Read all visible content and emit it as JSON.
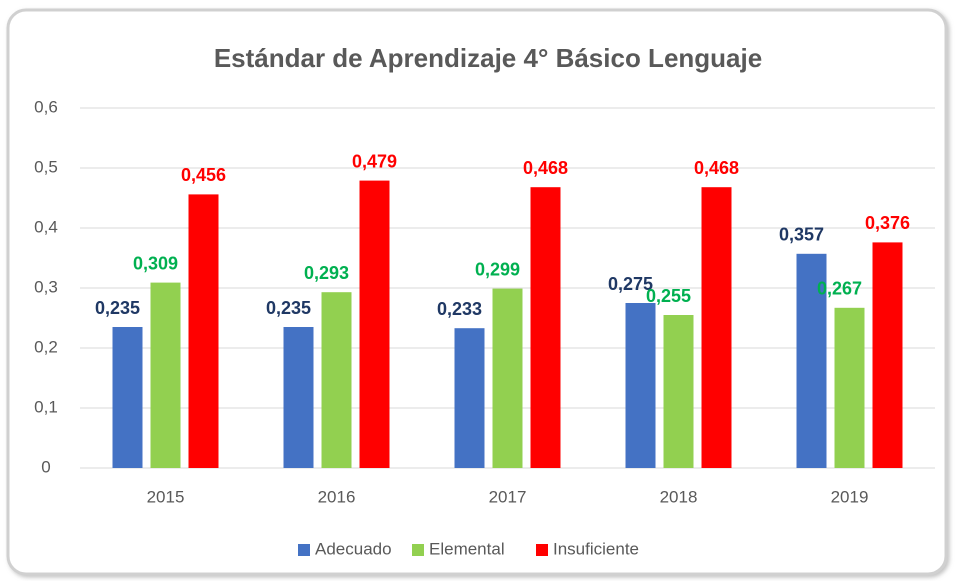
{
  "chart_data": {
    "type": "bar",
    "title": "Estándar de Aprendizaje 4° Básico Lenguaje",
    "categories": [
      "2015",
      "2016",
      "2017",
      "2018",
      "2019"
    ],
    "series": [
      {
        "name": "Adecuado",
        "color": "#4472c4",
        "label_color": "#1f3864",
        "values": [
          0.235,
          0.235,
          0.233,
          0.275,
          0.357
        ],
        "value_labels": [
          "0,235",
          "0,235",
          "0,233",
          "0,275",
          "0,357"
        ]
      },
      {
        "name": "Elemental",
        "color": "#92d050",
        "label_color": "#00b050",
        "values": [
          0.309,
          0.293,
          0.299,
          0.255,
          0.267
        ],
        "value_labels": [
          "0,309",
          "0,293",
          "0,299",
          "0,255",
          "0,267"
        ]
      },
      {
        "name": "Insuficiente",
        "color": "#ff0000",
        "label_color": "#ff0000",
        "values": [
          0.456,
          0.479,
          0.468,
          0.468,
          0.376
        ],
        "value_labels": [
          "0,456",
          "0,479",
          "0,468",
          "0,468",
          "0,376"
        ]
      }
    ],
    "ylim": [
      0,
      0.6
    ],
    "yticks": [
      0,
      {
        "value": 0.1,
        "label": "0,1"
      },
      {
        "value": 0.2,
        "label": "0,2"
      },
      {
        "value": 0.3,
        "label": "0,3"
      },
      {
        "value": 0.4,
        "label": "0,4"
      },
      {
        "value": 0.5,
        "label": "0,5"
      },
      {
        "value": 0.6,
        "label": "0,6"
      }
    ],
    "grid": true,
    "legend": "bottom"
  }
}
